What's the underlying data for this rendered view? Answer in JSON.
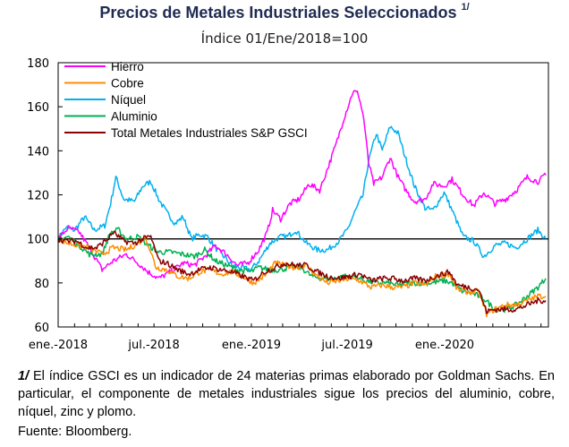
{
  "header": {
    "title": "Precios de Metales Industriales Seleccionados",
    "title_sup": "1/",
    "subtitle": "Índice 01/Ene/2018=100"
  },
  "footnote": {
    "mark": "1/",
    "text": "El índice GSCI es un indicador de 24 materias primas elaborado por Goldman Sachs. En particular, el componente de metales industriales sigue los precios del aluminio, cobre, níquel, zinc y plomo.",
    "source": "Fuente: Bloomberg."
  },
  "chart_data": {
    "type": "line",
    "title": "Precios de Metales Industriales Seleccionados",
    "subtitle": "Índice 01/Ene/2018=100",
    "xlabel": "",
    "ylabel": "",
    "ylim": [
      60,
      180
    ],
    "yticks": [
      60,
      80,
      100,
      120,
      140,
      160,
      180
    ],
    "xlim": [
      "2018-01-01",
      "2020-07-15"
    ],
    "xticks": [
      {
        "date": "2018-01-01",
        "label": "ene.-2018"
      },
      {
        "date": "2018-07-01",
        "label": "jul.-2018"
      },
      {
        "date": "2019-01-01",
        "label": "ene.-2019"
      },
      {
        "date": "2019-07-01",
        "label": "jul.-2019"
      },
      {
        "date": "2020-01-01",
        "label": "ene.-2020"
      }
    ],
    "reference_line": 100,
    "grid": false,
    "legend_position": "top-left",
    "series": [
      {
        "name": "Hierro",
        "color": "#ff00ff",
        "points": [
          [
            "2018-01-01",
            100
          ],
          [
            "2018-01-20",
            105
          ],
          [
            "2018-02-10",
            103
          ],
          [
            "2018-03-01",
            96
          ],
          [
            "2018-03-25",
            86
          ],
          [
            "2018-04-15",
            90
          ],
          [
            "2018-05-10",
            93
          ],
          [
            "2018-06-01",
            89
          ],
          [
            "2018-06-20",
            85
          ],
          [
            "2018-07-10",
            82
          ],
          [
            "2018-08-01",
            85
          ],
          [
            "2018-08-25",
            89
          ],
          [
            "2018-09-15",
            88
          ],
          [
            "2018-10-05",
            92
          ],
          [
            "2018-10-25",
            97
          ],
          [
            "2018-11-15",
            93
          ],
          [
            "2018-12-05",
            88
          ],
          [
            "2018-12-25",
            89
          ],
          [
            "2019-01-15",
            95
          ],
          [
            "2019-01-31",
            103
          ],
          [
            "2019-02-10",
            113
          ],
          [
            "2019-02-25",
            109
          ],
          [
            "2019-03-15",
            116
          ],
          [
            "2019-04-01",
            118
          ],
          [
            "2019-04-20",
            125
          ],
          [
            "2019-05-10",
            122
          ],
          [
            "2019-05-25",
            132
          ],
          [
            "2019-06-10",
            143
          ],
          [
            "2019-06-25",
            155
          ],
          [
            "2019-07-05",
            162
          ],
          [
            "2019-07-12",
            167
          ],
          [
            "2019-07-22",
            166
          ],
          [
            "2019-08-01",
            155
          ],
          [
            "2019-08-10",
            135
          ],
          [
            "2019-08-20",
            125
          ],
          [
            "2019-09-05",
            128
          ],
          [
            "2019-09-20",
            137
          ],
          [
            "2019-10-05",
            128
          ],
          [
            "2019-10-20",
            122
          ],
          [
            "2019-11-05",
            117
          ],
          [
            "2019-11-25",
            118
          ],
          [
            "2019-12-10",
            125
          ],
          [
            "2019-12-31",
            124
          ],
          [
            "2020-01-15",
            127
          ],
          [
            "2020-02-05",
            120
          ],
          [
            "2020-02-25",
            115
          ],
          [
            "2020-03-15",
            121
          ],
          [
            "2020-04-05",
            116
          ],
          [
            "2020-04-25",
            118
          ],
          [
            "2020-05-15",
            122
          ],
          [
            "2020-06-05",
            128
          ],
          [
            "2020-06-25",
            126
          ],
          [
            "2020-07-10",
            129
          ]
        ]
      },
      {
        "name": "Cobre",
        "color": "#ff8c00",
        "points": [
          [
            "2018-01-01",
            100
          ],
          [
            "2018-01-20",
            98
          ],
          [
            "2018-02-10",
            97
          ],
          [
            "2018-03-01",
            96
          ],
          [
            "2018-03-25",
            93
          ],
          [
            "2018-04-15",
            96
          ],
          [
            "2018-05-10",
            95
          ],
          [
            "2018-06-01",
            98
          ],
          [
            "2018-06-15",
            101
          ],
          [
            "2018-07-05",
            87
          ],
          [
            "2018-07-25",
            86
          ],
          [
            "2018-08-15",
            83
          ],
          [
            "2018-09-05",
            82
          ],
          [
            "2018-09-25",
            85
          ],
          [
            "2018-10-15",
            86
          ],
          [
            "2018-11-05",
            84
          ],
          [
            "2018-11-25",
            85
          ],
          [
            "2018-12-15",
            83
          ],
          [
            "2019-01-05",
            80
          ],
          [
            "2019-01-25",
            83
          ],
          [
            "2019-02-15",
            89
          ],
          [
            "2019-03-05",
            88
          ],
          [
            "2019-03-25",
            87
          ],
          [
            "2019-04-15",
            88
          ],
          [
            "2019-05-05",
            83
          ],
          [
            "2019-05-25",
            80
          ],
          [
            "2019-06-15",
            81
          ],
          [
            "2019-07-05",
            82
          ],
          [
            "2019-07-25",
            81
          ],
          [
            "2019-08-15",
            78
          ],
          [
            "2019-09-05",
            79
          ],
          [
            "2019-09-25",
            78
          ],
          [
            "2019-10-15",
            78
          ],
          [
            "2019-11-05",
            80
          ],
          [
            "2019-11-25",
            79
          ],
          [
            "2019-12-15",
            83
          ],
          [
            "2020-01-10",
            84
          ],
          [
            "2020-01-25",
            77
          ],
          [
            "2020-02-15",
            76
          ],
          [
            "2020-03-05",
            76
          ],
          [
            "2020-03-20",
            66
          ],
          [
            "2020-04-05",
            68
          ],
          [
            "2020-04-25",
            70
          ],
          [
            "2020-05-15",
            70
          ],
          [
            "2020-06-05",
            72
          ],
          [
            "2020-06-25",
            74
          ],
          [
            "2020-07-10",
            74
          ]
        ]
      },
      {
        "name": "Níquel",
        "color": "#00b0f0",
        "points": [
          [
            "2018-01-01",
            100
          ],
          [
            "2018-01-15",
            105
          ],
          [
            "2018-02-01",
            104
          ],
          [
            "2018-02-20",
            110
          ],
          [
            "2018-03-10",
            104
          ],
          [
            "2018-03-30",
            106
          ],
          [
            "2018-04-10",
            116
          ],
          [
            "2018-04-20",
            128
          ],
          [
            "2018-05-05",
            118
          ],
          [
            "2018-05-25",
            117
          ],
          [
            "2018-06-10",
            124
          ],
          [
            "2018-06-25",
            126
          ],
          [
            "2018-07-10",
            118
          ],
          [
            "2018-07-25",
            112
          ],
          [
            "2018-08-10",
            107
          ],
          [
            "2018-08-25",
            110
          ],
          [
            "2018-09-10",
            100
          ],
          [
            "2018-09-25",
            102
          ],
          [
            "2018-10-10",
            101
          ],
          [
            "2018-10-25",
            96
          ],
          [
            "2018-11-10",
            92
          ],
          [
            "2018-11-25",
            88
          ],
          [
            "2018-12-10",
            87
          ],
          [
            "2018-12-31",
            86
          ],
          [
            "2019-01-15",
            90
          ],
          [
            "2019-02-05",
            98
          ],
          [
            "2019-02-25",
            101
          ],
          [
            "2019-03-10",
            101
          ],
          [
            "2019-03-25",
            104
          ],
          [
            "2019-04-15",
            98
          ],
          [
            "2019-05-05",
            95
          ],
          [
            "2019-05-25",
            95
          ],
          [
            "2019-06-15",
            99
          ],
          [
            "2019-07-01",
            104
          ],
          [
            "2019-07-15",
            112
          ],
          [
            "2019-07-31",
            120
          ],
          [
            "2019-08-10",
            135
          ],
          [
            "2019-08-25",
            148
          ],
          [
            "2019-09-05",
            140
          ],
          [
            "2019-09-20",
            151
          ],
          [
            "2019-10-05",
            148
          ],
          [
            "2019-10-20",
            136
          ],
          [
            "2019-11-05",
            124
          ],
          [
            "2019-11-25",
            114
          ],
          [
            "2019-12-10",
            113
          ],
          [
            "2019-12-31",
            121
          ],
          [
            "2020-01-15",
            113
          ],
          [
            "2020-02-05",
            101
          ],
          [
            "2020-02-25",
            99
          ],
          [
            "2020-03-15",
            92
          ],
          [
            "2020-04-05",
            97
          ],
          [
            "2020-04-25",
            98
          ],
          [
            "2020-05-15",
            96
          ],
          [
            "2020-06-05",
            100
          ],
          [
            "2020-06-25",
            104
          ],
          [
            "2020-07-10",
            100
          ]
        ]
      },
      {
        "name": "Aluminio",
        "color": "#00b050",
        "points": [
          [
            "2018-01-01",
            100
          ],
          [
            "2018-01-20",
            101
          ],
          [
            "2018-02-10",
            97
          ],
          [
            "2018-03-01",
            93
          ],
          [
            "2018-03-25",
            93
          ],
          [
            "2018-04-10",
            103
          ],
          [
            "2018-04-25",
            104
          ],
          [
            "2018-05-10",
            100
          ],
          [
            "2018-06-01",
            101
          ],
          [
            "2018-06-20",
            97
          ],
          [
            "2018-07-10",
            94
          ],
          [
            "2018-08-01",
            94
          ],
          [
            "2018-08-25",
            93
          ],
          [
            "2018-09-15",
            92
          ],
          [
            "2018-10-05",
            95
          ],
          [
            "2018-10-25",
            90
          ],
          [
            "2018-11-15",
            88
          ],
          [
            "2018-12-05",
            86
          ],
          [
            "2018-12-31",
            85
          ],
          [
            "2019-01-15",
            87
          ],
          [
            "2019-02-05",
            86
          ],
          [
            "2019-02-25",
            86
          ],
          [
            "2019-03-15",
            87
          ],
          [
            "2019-04-05",
            87
          ],
          [
            "2019-04-25",
            83
          ],
          [
            "2019-05-15",
            82
          ],
          [
            "2019-06-05",
            82
          ],
          [
            "2019-06-25",
            83
          ],
          [
            "2019-07-15",
            83
          ],
          [
            "2019-08-05",
            81
          ],
          [
            "2019-08-25",
            80
          ],
          [
            "2019-09-15",
            80
          ],
          [
            "2019-10-05",
            79
          ],
          [
            "2019-10-25",
            80
          ],
          [
            "2019-11-15",
            80
          ],
          [
            "2019-12-05",
            80
          ],
          [
            "2019-12-31",
            81
          ],
          [
            "2020-01-15",
            80
          ],
          [
            "2020-02-05",
            76
          ],
          [
            "2020-02-25",
            75
          ],
          [
            "2020-03-15",
            73
          ],
          [
            "2020-04-05",
            68
          ],
          [
            "2020-04-25",
            68
          ],
          [
            "2020-05-15",
            70
          ],
          [
            "2020-06-05",
            74
          ],
          [
            "2020-06-25",
            78
          ],
          [
            "2020-07-10",
            82
          ]
        ]
      },
      {
        "name": "Total Metales Industriales S&P GSCI",
        "color": "#8b0000",
        "points": [
          [
            "2018-01-01",
            100
          ],
          [
            "2018-01-15",
            99
          ],
          [
            "2018-02-05",
            99
          ],
          [
            "2018-02-25",
            96
          ],
          [
            "2018-03-15",
            96
          ],
          [
            "2018-04-05",
            100
          ],
          [
            "2018-04-15",
            103
          ],
          [
            "2018-05-05",
            99
          ],
          [
            "2018-05-25",
            98
          ],
          [
            "2018-06-10",
            100
          ],
          [
            "2018-06-25",
            101
          ],
          [
            "2018-07-10",
            90
          ],
          [
            "2018-07-25",
            89
          ],
          [
            "2018-08-15",
            86
          ],
          [
            "2018-09-05",
            84
          ],
          [
            "2018-09-25",
            86
          ],
          [
            "2018-10-15",
            87
          ],
          [
            "2018-11-05",
            86
          ],
          [
            "2018-11-25",
            85
          ],
          [
            "2018-12-15",
            83
          ],
          [
            "2019-01-05",
            81
          ],
          [
            "2019-01-25",
            85
          ],
          [
            "2019-02-15",
            87
          ],
          [
            "2019-03-05",
            89
          ],
          [
            "2019-03-25",
            88
          ],
          [
            "2019-04-15",
            88
          ],
          [
            "2019-05-05",
            85
          ],
          [
            "2019-05-25",
            83
          ],
          [
            "2019-06-15",
            82
          ],
          [
            "2019-07-05",
            83
          ],
          [
            "2019-07-25",
            84
          ],
          [
            "2019-08-15",
            81
          ],
          [
            "2019-09-05",
            82
          ],
          [
            "2019-09-25",
            82
          ],
          [
            "2019-10-15",
            81
          ],
          [
            "2019-11-05",
            82
          ],
          [
            "2019-11-25",
            81
          ],
          [
            "2019-12-15",
            83
          ],
          [
            "2020-01-10",
            85
          ],
          [
            "2020-01-25",
            79
          ],
          [
            "2020-02-15",
            78
          ],
          [
            "2020-03-05",
            77
          ],
          [
            "2020-03-20",
            67
          ],
          [
            "2020-04-05",
            68
          ],
          [
            "2020-04-25",
            68
          ],
          [
            "2020-05-15",
            68
          ],
          [
            "2020-06-05",
            70
          ],
          [
            "2020-06-25",
            72
          ],
          [
            "2020-07-10",
            72
          ]
        ]
      }
    ]
  }
}
